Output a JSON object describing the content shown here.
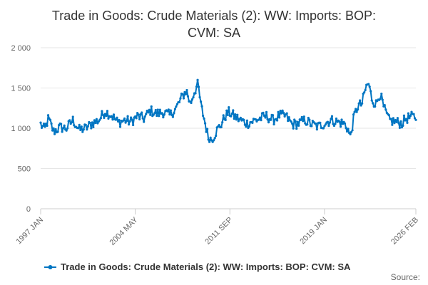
{
  "chart_data": {
    "type": "line",
    "title_lines": [
      "Trade in Goods: Crude Materials (2): WW: Imports: BOP:",
      "CVM: SA"
    ],
    "ylim": [
      0,
      2000
    ],
    "y_ticks": [
      0,
      500,
      1000,
      1500,
      2000
    ],
    "y_tick_labels": [
      "0",
      "500",
      "1 000",
      "1 500",
      "2 000"
    ],
    "x_range": [
      1997.0,
      2026.083
    ],
    "x_ticks": [
      {
        "label": "1997 JAN",
        "x": 1997.0
      },
      {
        "label": "2004 MAY",
        "x": 2004.333
      },
      {
        "label": "2011 SEP",
        "x": 2011.667
      },
      {
        "label": "2019 JAN",
        "x": 2019.0
      },
      {
        "label": "2026 FEB",
        "x": 2026.083
      }
    ],
    "series": [
      {
        "name": "Trade in Goods: Crude Materials (2): WW: Imports: BOP: CVM: SA",
        "color": "#0075c2",
        "anchors": [
          [
            1997.0,
            1050
          ],
          [
            1997.3,
            980
          ],
          [
            1997.6,
            1120
          ],
          [
            1998.0,
            960
          ],
          [
            1998.5,
            1010
          ],
          [
            1999.0,
            1000
          ],
          [
            1999.5,
            1100
          ],
          [
            2000.0,
            980
          ],
          [
            2000.5,
            1000
          ],
          [
            2001.0,
            1060
          ],
          [
            2001.5,
            1100
          ],
          [
            2002.0,
            1210
          ],
          [
            2002.5,
            1160
          ],
          [
            2003.0,
            1070
          ],
          [
            2003.5,
            1100
          ],
          [
            2004.0,
            1080
          ],
          [
            2004.5,
            1150
          ],
          [
            2005.0,
            1120
          ],
          [
            2005.5,
            1220
          ],
          [
            2006.0,
            1180
          ],
          [
            2006.5,
            1200
          ],
          [
            2007.0,
            1160
          ],
          [
            2007.5,
            1250
          ],
          [
            2008.0,
            1400
          ],
          [
            2008.3,
            1470
          ],
          [
            2008.6,
            1300
          ],
          [
            2008.9,
            1450
          ],
          [
            2009.2,
            1550
          ],
          [
            2009.4,
            1300
          ],
          [
            2009.7,
            1100
          ],
          [
            2010.0,
            880
          ],
          [
            2010.3,
            860
          ],
          [
            2010.6,
            960
          ],
          [
            2011.0,
            1050
          ],
          [
            2011.3,
            1150
          ],
          [
            2011.6,
            1200
          ],
          [
            2012.0,
            1150
          ],
          [
            2012.5,
            1100
          ],
          [
            2013.0,
            1060
          ],
          [
            2013.5,
            1090
          ],
          [
            2014.0,
            1120
          ],
          [
            2014.5,
            1150
          ],
          [
            2015.0,
            1100
          ],
          [
            2015.5,
            1160
          ],
          [
            2016.0,
            1150
          ],
          [
            2016.5,
            1050
          ],
          [
            2017.0,
            1060
          ],
          [
            2017.5,
            1100
          ],
          [
            2018.0,
            1050
          ],
          [
            2018.5,
            1020
          ],
          [
            2019.0,
            1060
          ],
          [
            2019.5,
            1100
          ],
          [
            2020.0,
            1080
          ],
          [
            2020.5,
            1060
          ],
          [
            2020.8,
            1000
          ],
          [
            2021.0,
            890
          ],
          [
            2021.3,
            1150
          ],
          [
            2021.6,
            1280
          ],
          [
            2021.9,
            1300
          ],
          [
            2022.2,
            1500
          ],
          [
            2022.4,
            1560
          ],
          [
            2022.7,
            1350
          ],
          [
            2023.0,
            1300
          ],
          [
            2023.3,
            1440
          ],
          [
            2023.6,
            1250
          ],
          [
            2024.0,
            1100
          ],
          [
            2024.5,
            1080
          ],
          [
            2025.0,
            1060
          ],
          [
            2025.3,
            1120
          ],
          [
            2025.7,
            1140
          ],
          [
            2026.083,
            1140
          ]
        ]
      }
    ],
    "legend": {
      "position": "bottom-center"
    },
    "source_label": "Source:"
  }
}
